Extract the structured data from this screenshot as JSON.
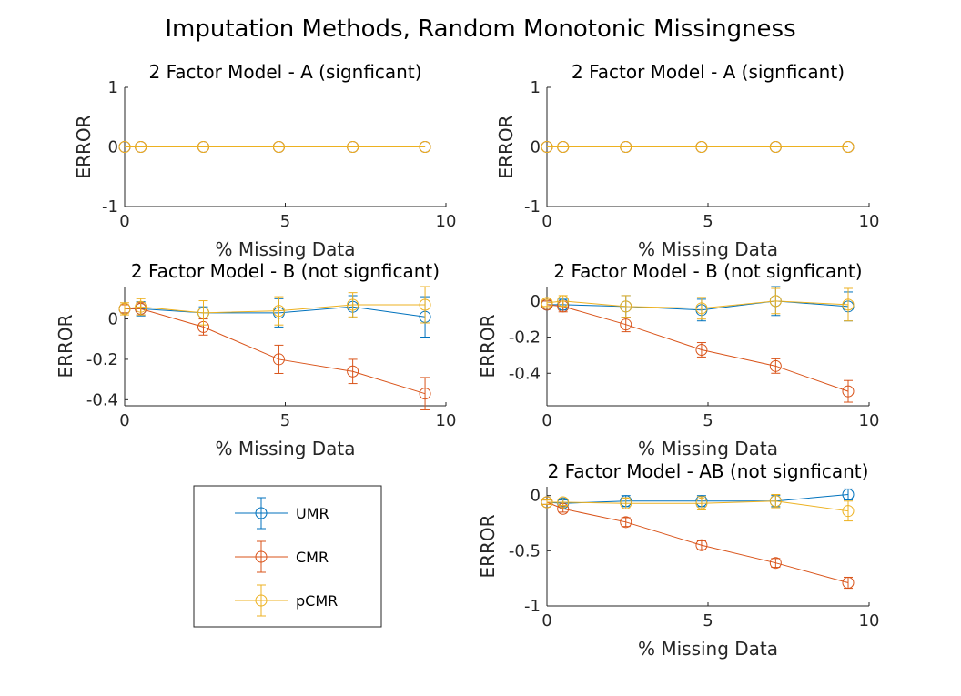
{
  "figure": {
    "title": "Imputation Methods, Random Monotonic Missingness"
  },
  "colors": {
    "UMR": "#0072BD",
    "CMR": "#D95319",
    "pCMR": "#EDB120",
    "axis": "#262626"
  },
  "legend": {
    "entries": [
      "UMR",
      "CMR",
      "pCMR"
    ]
  },
  "chart_data": [
    {
      "type": "line",
      "title": "2 Factor Model - A (signficant)",
      "xlabel": "% Missing Data",
      "ylabel": "ERROR",
      "xlim": [
        0,
        10
      ],
      "ylim": [
        -1,
        1
      ],
      "xticks": [
        "0",
        "5",
        "10"
      ],
      "yticks": [
        "-1",
        "0",
        "1"
      ],
      "x": [
        0,
        0.5,
        2.45,
        4.8,
        7.1,
        9.35
      ],
      "series": [
        {
          "name": "UMR",
          "values": [
            0,
            0,
            0,
            0,
            0,
            0
          ],
          "err": [
            0,
            0,
            0,
            0,
            0,
            0
          ]
        },
        {
          "name": "CMR",
          "values": [
            0,
            0,
            0,
            0,
            0,
            0
          ],
          "err": [
            0,
            0,
            0,
            0,
            0,
            0
          ]
        },
        {
          "name": "pCMR",
          "values": [
            0,
            0,
            0,
            0,
            0,
            0
          ],
          "err": [
            0,
            0,
            0,
            0,
            0,
            0
          ]
        }
      ]
    },
    {
      "type": "line",
      "title": "2 Factor Model - A (signficant)",
      "xlabel": "% Missing Data",
      "ylabel": "ERROR",
      "xlim": [
        0,
        10
      ],
      "ylim": [
        -1,
        1
      ],
      "xticks": [
        "0",
        "5",
        "10"
      ],
      "yticks": [
        "-1",
        "0",
        "1"
      ],
      "x": [
        0,
        0.5,
        2.45,
        4.8,
        7.1,
        9.35
      ],
      "series": [
        {
          "name": "UMR",
          "values": [
            0,
            0,
            0,
            0,
            0,
            0
          ],
          "err": [
            0,
            0,
            0,
            0,
            0,
            0
          ]
        },
        {
          "name": "CMR",
          "values": [
            0,
            0,
            0,
            0,
            0,
            0
          ],
          "err": [
            0,
            0,
            0,
            0,
            0,
            0
          ]
        },
        {
          "name": "pCMR",
          "values": [
            0,
            0,
            0,
            0,
            0,
            0
          ],
          "err": [
            0,
            0,
            0,
            0,
            0,
            0
          ]
        }
      ]
    },
    {
      "type": "line",
      "title": "2 Factor Model - B (not signficant)",
      "xlabel": "% Missing Data",
      "ylabel": "ERROR",
      "xlim": [
        0,
        10
      ],
      "ylim": [
        -0.43,
        0.16
      ],
      "xticks": [
        "0",
        "5",
        "10"
      ],
      "yticks": [
        "-0.4",
        "-0.2",
        "0"
      ],
      "ytick_values": [
        -0.4,
        -0.2,
        0
      ],
      "x": [
        0,
        0.5,
        2.45,
        4.8,
        7.1,
        9.35
      ],
      "series": [
        {
          "name": "UMR",
          "values": [
            0.05,
            0.05,
            0.03,
            0.03,
            0.06,
            0.01
          ],
          "err": [
            0.02,
            0.035,
            0.03,
            0.07,
            0.055,
            0.1
          ]
        },
        {
          "name": "CMR",
          "values": [
            0.05,
            0.05,
            -0.04,
            -0.2,
            -0.26,
            -0.37
          ],
          "err": [
            0.02,
            0.03,
            0.04,
            0.07,
            0.06,
            0.08
          ]
        },
        {
          "name": "pCMR",
          "values": [
            0.05,
            0.06,
            0.03,
            0.04,
            0.07,
            0.07
          ],
          "err": [
            0.03,
            0.04,
            0.06,
            0.07,
            0.06,
            0.09
          ]
        }
      ]
    },
    {
      "type": "line",
      "title": "2 Factor Model - B (not signficant)",
      "xlabel": "% Missing Data",
      "ylabel": "ERROR",
      "xlim": [
        0,
        10
      ],
      "ylim": [
        -0.58,
        0.08
      ],
      "xticks": [
        "0",
        "5",
        "10"
      ],
      "yticks": [
        "-0.4",
        "-0.2",
        "0"
      ],
      "ytick_values": [
        -0.4,
        -0.2,
        0
      ],
      "x": [
        0,
        0.5,
        2.45,
        4.8,
        7.1,
        9.35
      ],
      "series": [
        {
          "name": "UMR",
          "values": [
            -0.02,
            -0.02,
            -0.03,
            -0.05,
            0,
            -0.03
          ],
          "err": [
            0.02,
            0.03,
            0.06,
            0.06,
            0.08,
            0.08
          ]
        },
        {
          "name": "CMR",
          "values": [
            -0.02,
            -0.03,
            -0.13,
            -0.27,
            -0.36,
            -0.5
          ],
          "err": [
            0.02,
            0.03,
            0.04,
            0.04,
            0.04,
            0.06
          ]
        },
        {
          "name": "pCMR",
          "values": [
            -0.01,
            0,
            -0.03,
            -0.04,
            0,
            -0.02
          ],
          "err": [
            0.02,
            0.03,
            0.06,
            0.06,
            0.07,
            0.09
          ]
        }
      ]
    },
    {
      "type": "line",
      "title": "2 Factor Model - AB (not signficant)",
      "xlabel": "% Missing Data",
      "ylabel": "ERROR",
      "xlim": [
        0,
        10
      ],
      "ylim": [
        -1,
        0.08
      ],
      "xticks": [
        "0",
        "5",
        "10"
      ],
      "yticks": [
        "-1",
        "-0.5",
        "0"
      ],
      "ytick_values": [
        -1,
        -0.5,
        0
      ],
      "x": [
        0,
        0.5,
        2.45,
        4.8,
        7.1,
        9.35
      ],
      "series": [
        {
          "name": "UMR",
          "values": [
            -0.06,
            -0.07,
            -0.05,
            -0.05,
            -0.05,
            0.01
          ],
          "err": [
            0.02,
            0.03,
            0.05,
            0.05,
            0.05,
            0.05
          ]
        },
        {
          "name": "CMR",
          "values": [
            -0.06,
            -0.12,
            -0.24,
            -0.45,
            -0.61,
            -0.79
          ],
          "err": [
            0.02,
            0.03,
            0.04,
            0.04,
            0.04,
            0.05
          ]
        },
        {
          "name": "pCMR",
          "values": [
            -0.06,
            -0.06,
            -0.07,
            -0.07,
            -0.05,
            -0.14
          ],
          "err": [
            0.02,
            0.03,
            0.05,
            0.06,
            0.06,
            0.09
          ]
        }
      ]
    }
  ]
}
